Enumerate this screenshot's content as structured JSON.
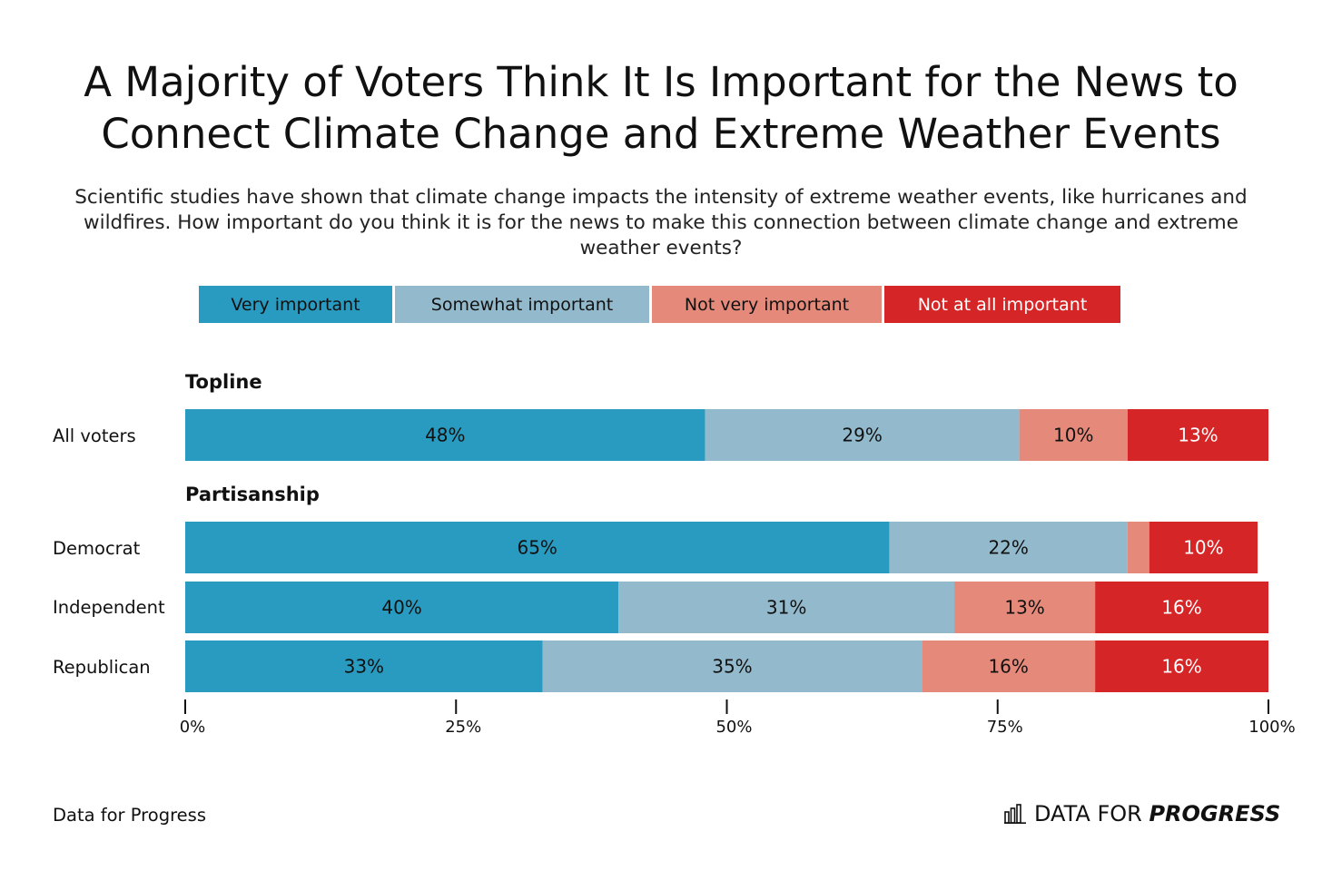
{
  "title": "A Majority of Voters Think It Is Important for the News to Connect Climate Change and Extreme Weather Events",
  "subtitle": "Scientific studies have shown that climate change impacts the intensity of extreme weather events, like hurricanes and wildfires. How important do you think it is for the news to make this connection between climate change and extreme weather events?",
  "legend": [
    {
      "label": "Very important",
      "color": "#2A9BC0",
      "text_color": "#111111"
    },
    {
      "label": "Somewhat important",
      "color": "#93BACC",
      "text_color": "#111111"
    },
    {
      "label": "Not very important",
      "color": "#E58A7A",
      "text_color": "#111111"
    },
    {
      "label": "Not at all important",
      "color": "#D62526",
      "text_color": "#ffffff"
    }
  ],
  "chart_data": {
    "type": "bar",
    "orientation": "horizontal",
    "stacked": true,
    "xlim": [
      0,
      100
    ],
    "x_ticks": [
      "0%",
      "25%",
      "50%",
      "75%",
      "100%"
    ],
    "series": [
      {
        "name": "Very important",
        "color": "#2A9BC0",
        "label_color": "#111111"
      },
      {
        "name": "Somewhat important",
        "color": "#93BACC",
        "label_color": "#111111"
      },
      {
        "name": "Not very important",
        "color": "#E58A7A",
        "label_color": "#111111"
      },
      {
        "name": "Not at all important",
        "color": "#D62526",
        "label_color": "#ffffff"
      }
    ],
    "groups": [
      {
        "heading": "Topline",
        "rows": [
          {
            "label": "All voters",
            "values": [
              48,
              29,
              10,
              13
            ],
            "labels": [
              "48%",
              "29%",
              "10%",
              "13%"
            ]
          }
        ]
      },
      {
        "heading": "Partisanship",
        "rows": [
          {
            "label": "Democrat",
            "values": [
              65,
              22,
              2,
              10
            ],
            "labels": [
              "65%",
              "22%",
              "",
              "10%"
            ]
          },
          {
            "label": "Independent",
            "values": [
              40,
              31,
              13,
              16
            ],
            "labels": [
              "40%",
              "31%",
              "13%",
              "16%"
            ]
          },
          {
            "label": "Republican",
            "values": [
              33,
              35,
              16,
              16
            ],
            "labels": [
              "33%",
              "35%",
              "16%",
              "16%"
            ]
          }
        ]
      }
    ]
  },
  "footer": {
    "source": "Data for Progress",
    "brand_light": "DATA FOR",
    "brand_bold": "PROGRESS"
  }
}
